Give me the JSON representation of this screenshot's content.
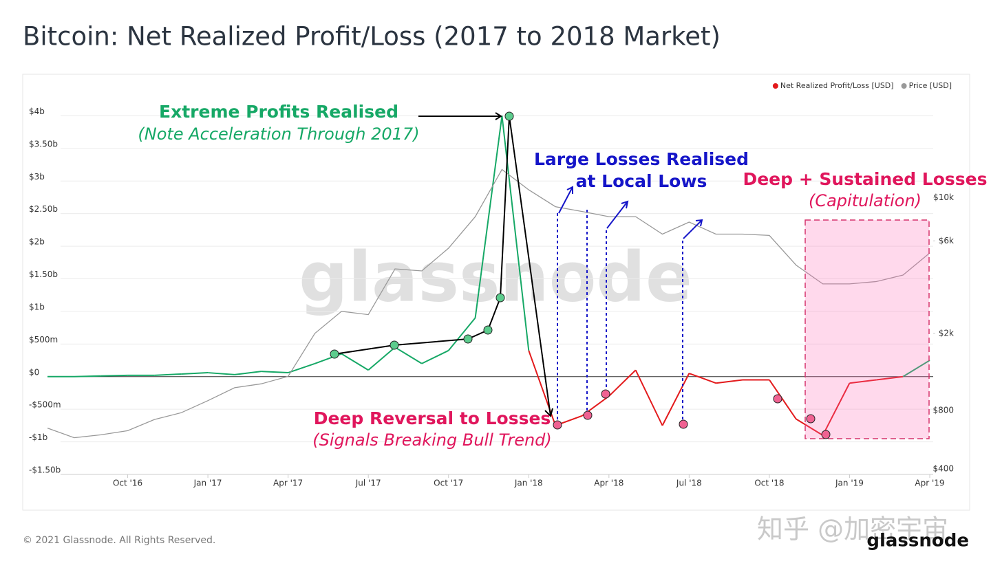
{
  "chart_data": {
    "type": "line",
    "title": "Bitcoin: Net Realized Profit/Loss (2017 to 2018 Market)",
    "x": [
      "2016-07",
      "2016-08",
      "2016-09",
      "2016-10",
      "2016-11",
      "2016-12",
      "2017-01",
      "2017-02",
      "2017-03",
      "2017-04",
      "2017-05",
      "2017-06",
      "2017-07",
      "2017-08",
      "2017-09",
      "2017-10",
      "2017-11",
      "2017-12",
      "2018-01",
      "2018-02",
      "2018-03",
      "2018-04",
      "2018-05",
      "2018-06",
      "2018-07",
      "2018-08",
      "2018-09",
      "2018-10",
      "2018-11",
      "2018-12",
      "2019-01",
      "2019-02",
      "2019-03",
      "2019-04"
    ],
    "xlim": [
      "2016-07",
      "2019-04"
    ],
    "xticks": [
      {
        "value": "2016-10",
        "label": "Oct '16"
      },
      {
        "value": "2017-01",
        "label": "Jan '17"
      },
      {
        "value": "2017-04",
        "label": "Apr '17"
      },
      {
        "value": "2017-07",
        "label": "Jul '17"
      },
      {
        "value": "2017-10",
        "label": "Oct '17"
      },
      {
        "value": "2018-01",
        "label": "Jan '18"
      },
      {
        "value": "2018-04",
        "label": "Apr '18"
      },
      {
        "value": "2018-07",
        "label": "Jul '18"
      },
      {
        "value": "2018-10",
        "label": "Oct '18"
      },
      {
        "value": "2019-01",
        "label": "Jan '19"
      },
      {
        "value": "2019-04",
        "label": "Apr '19"
      }
    ],
    "ylim": [
      -1500000000,
      4500000000
    ],
    "yticks": [
      {
        "value": -1500000000,
        "label": "-$1.50b"
      },
      {
        "value": -1000000000,
        "label": "-$1b"
      },
      {
        "value": -500000000,
        "label": "-$500m"
      },
      {
        "value": 0,
        "label": "$0"
      },
      {
        "value": 500000000,
        "label": "$500m"
      },
      {
        "value": 1000000000,
        "label": "$1b"
      },
      {
        "value": 1500000000,
        "label": "$1.50b"
      },
      {
        "value": 2000000000,
        "label": "$2b"
      },
      {
        "value": 2500000000,
        "label": "$2.50b"
      },
      {
        "value": 3000000000,
        "label": "$3b"
      },
      {
        "value": 3500000000,
        "label": "$3.50b"
      },
      {
        "value": 4000000000,
        "label": "$4b"
      }
    ],
    "y2lim": [
      375,
      39000
    ],
    "y2scale": "log",
    "y2ticks": [
      {
        "value": 400,
        "label": "$400"
      },
      {
        "value": 800,
        "label": "$800"
      },
      {
        "value": 2000,
        "label": "$2k"
      },
      {
        "value": 6000,
        "label": "$6k"
      },
      {
        "value": 10000,
        "label": "$10k"
      }
    ],
    "grid": true,
    "legend": "top-right",
    "series": [
      {
        "name": "Net Realized Profit/Loss [USD]",
        "color": "#e31a1c",
        "positive_color": "#16a866",
        "negative_color": "#e31a1c",
        "values": [
          0,
          0,
          10000000,
          20000000,
          20000000,
          40000000,
          60000000,
          30000000,
          80000000,
          60000000,
          200000000,
          350000000,
          100000000,
          450000000,
          200000000,
          400000000,
          900000000,
          4000000000,
          400000000,
          -750000000,
          -600000000,
          -300000000,
          100000000,
          -750000000,
          50000000,
          -100000000,
          -50000000,
          -50000000,
          -650000000,
          -900000000,
          -100000000,
          -50000000,
          0,
          250000000
        ]
      },
      {
        "name": "Price [USD]",
        "color": "#999999",
        "axis": "y2",
        "values": [
          650,
          580,
          600,
          630,
          720,
          780,
          900,
          1050,
          1100,
          1200,
          2000,
          2600,
          2500,
          4300,
          4200,
          5500,
          8000,
          14000,
          11000,
          9000,
          8500,
          8000,
          8000,
          6500,
          7500,
          6500,
          6500,
          6400,
          4500,
          3600,
          3600,
          3700,
          4000,
          5200
        ]
      }
    ],
    "annotations": [
      "Extreme Profits Realised",
      "(Note Acceleration Through 2017)",
      "Large Losses Realised",
      "at Local Lows",
      "Deep + Sustained Losses",
      "(Capitulation)",
      "Deep Reversal to Losses",
      "(Signals Breaking Bull Trend)"
    ],
    "watermark": "glassnode",
    "footer": "© 2021 Glassnode. All Rights Reserved.",
    "logo": "glassnode",
    "credit": "知乎 @加密宇宙"
  }
}
